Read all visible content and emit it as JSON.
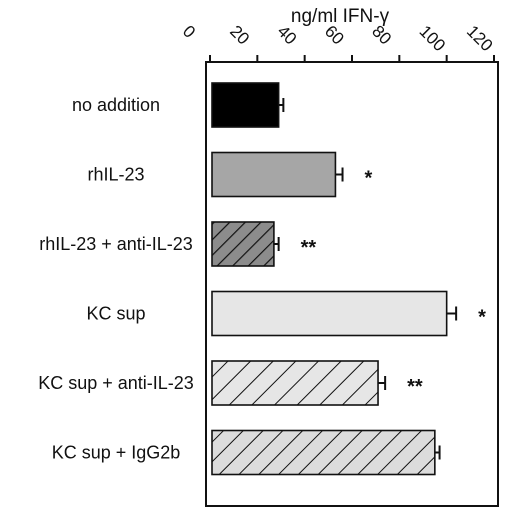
{
  "chart_data": {
    "type": "bar",
    "orientation": "horizontal",
    "x_axis_position": "top",
    "xlabel": "ng/ml IFN-γ",
    "xlim": [
      0,
      120
    ],
    "xticks": [
      "0",
      "20",
      "40",
      "60",
      "80",
      "100",
      "120"
    ],
    "categories": [
      "no addition",
      "rhIL-23",
      "rhIL-23 + anti-IL-23",
      "KC sup",
      "KC sup + anti-IL-23",
      "KC sup + IgG2b"
    ],
    "values": [
      29,
      53,
      27,
      100,
      71,
      95
    ],
    "errors": [
      2,
      3,
      2,
      4,
      3,
      2
    ],
    "annotations": [
      "",
      "*",
      "**",
      "*",
      "**",
      ""
    ],
    "fills": [
      "black",
      "dark gray",
      "gray with dark diagonal hatch",
      "light gray",
      "light gray with diagonal hatch",
      "light gray with diagonal hatch"
    ],
    "colors": {
      "no_addition": "#000000",
      "rhil23": "#a6a6a6",
      "rhil23_anti": "#8c8c8c",
      "kc_sup": "#e6e6e6",
      "kc_sup_anti": "#e6e6e6",
      "kc_sup_igg2b": "#dcdcdc",
      "hatch": "#111111"
    }
  }
}
